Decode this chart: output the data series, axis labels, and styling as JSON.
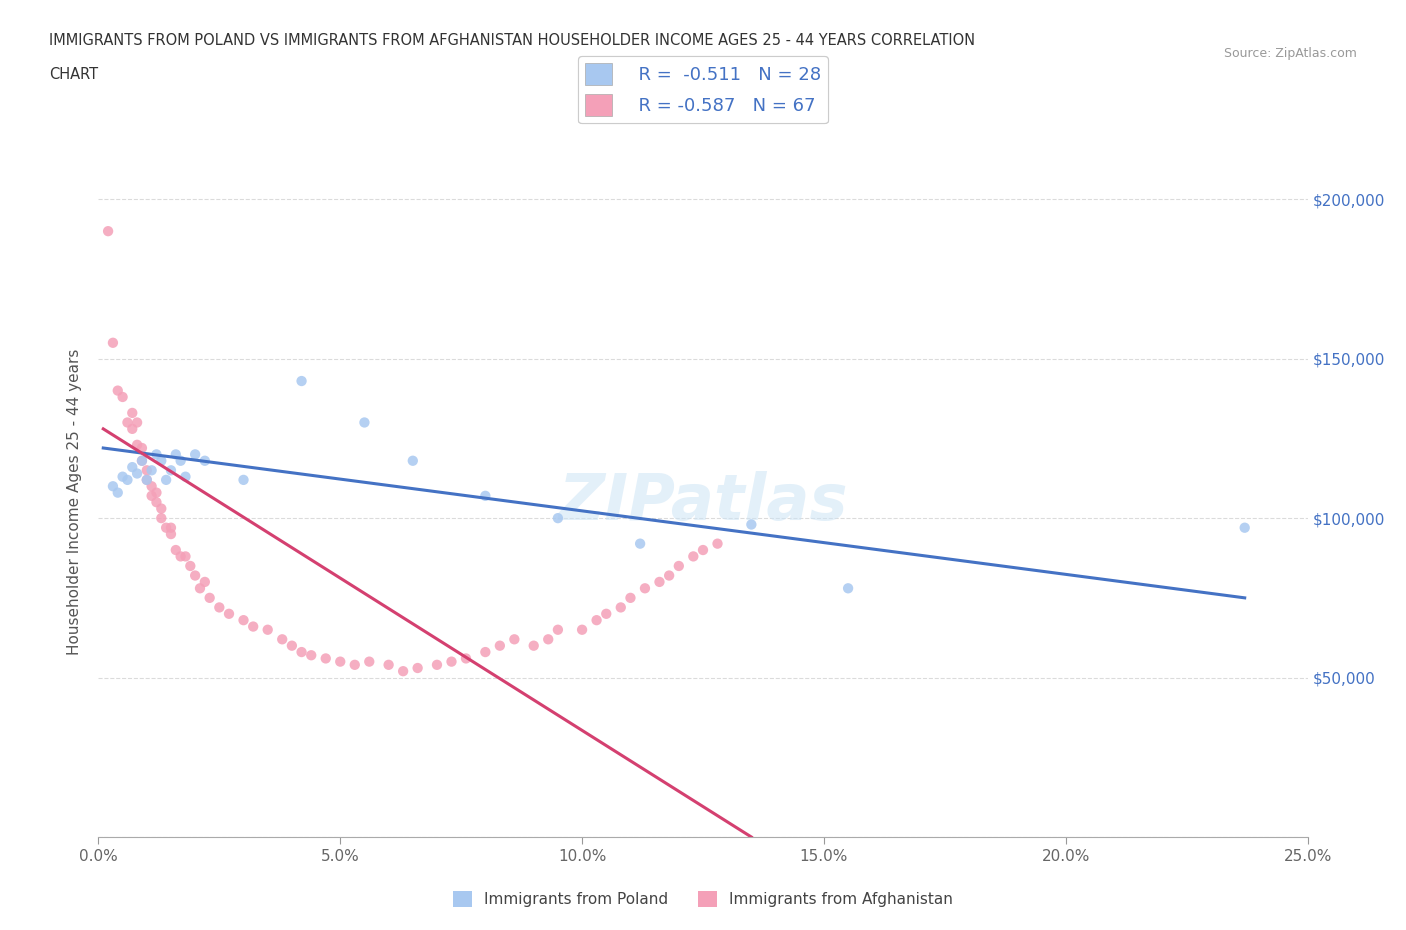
{
  "title_line1": "IMMIGRANTS FROM POLAND VS IMMIGRANTS FROM AFGHANISTAN HOUSEHOLDER INCOME AGES 25 - 44 YEARS CORRELATION",
  "title_line2": "CHART",
  "source": "Source: ZipAtlas.com",
  "ylabel": "Householder Income Ages 25 - 44 years",
  "xlim": [
    0.0,
    0.25
  ],
  "ylim": [
    0,
    210000
  ],
  "xticks": [
    0.0,
    0.05,
    0.1,
    0.15,
    0.2,
    0.25
  ],
  "xtick_labels": [
    "0.0%",
    "5.0%",
    "10.0%",
    "15.0%",
    "20.0%",
    "25.0%"
  ],
  "yticks": [
    0,
    50000,
    100000,
    150000,
    200000
  ],
  "ytick_labels_right": [
    "",
    "$50,000",
    "$100,000",
    "$150,000",
    "$200,000"
  ],
  "poland_color": "#a8c8f0",
  "poland_line_color": "#4472c4",
  "afghanistan_color": "#f4a0b8",
  "afghanistan_line_color": "#d44070",
  "r_poland": -0.511,
  "n_poland": 28,
  "r_afghanistan": -0.587,
  "n_afghanistan": 67,
  "poland_x": [
    0.003,
    0.004,
    0.005,
    0.006,
    0.007,
    0.008,
    0.009,
    0.01,
    0.011,
    0.012,
    0.013,
    0.014,
    0.015,
    0.016,
    0.017,
    0.018,
    0.02,
    0.022,
    0.03,
    0.042,
    0.055,
    0.065,
    0.08,
    0.095,
    0.112,
    0.135,
    0.155,
    0.237
  ],
  "poland_y": [
    110000,
    108000,
    113000,
    112000,
    116000,
    114000,
    118000,
    112000,
    115000,
    120000,
    118000,
    112000,
    115000,
    120000,
    118000,
    113000,
    120000,
    118000,
    112000,
    143000,
    130000,
    118000,
    107000,
    100000,
    92000,
    98000,
    78000,
    97000
  ],
  "afghanistan_x": [
    0.002,
    0.003,
    0.004,
    0.005,
    0.006,
    0.007,
    0.007,
    0.008,
    0.008,
    0.009,
    0.009,
    0.01,
    0.01,
    0.011,
    0.011,
    0.012,
    0.012,
    0.013,
    0.013,
    0.014,
    0.015,
    0.015,
    0.016,
    0.017,
    0.018,
    0.019,
    0.02,
    0.021,
    0.022,
    0.023,
    0.025,
    0.027,
    0.03,
    0.032,
    0.035,
    0.038,
    0.04,
    0.042,
    0.044,
    0.047,
    0.05,
    0.053,
    0.056,
    0.06,
    0.063,
    0.066,
    0.07,
    0.073,
    0.076,
    0.08,
    0.083,
    0.086,
    0.09,
    0.093,
    0.095,
    0.1,
    0.103,
    0.105,
    0.108,
    0.11,
    0.113,
    0.116,
    0.118,
    0.12,
    0.123,
    0.125,
    0.128
  ],
  "afghanistan_y": [
    190000,
    155000,
    140000,
    138000,
    130000,
    128000,
    133000,
    130000,
    123000,
    118000,
    122000,
    112000,
    115000,
    110000,
    107000,
    105000,
    108000,
    103000,
    100000,
    97000,
    95000,
    97000,
    90000,
    88000,
    88000,
    85000,
    82000,
    78000,
    80000,
    75000,
    72000,
    70000,
    68000,
    66000,
    65000,
    62000,
    60000,
    58000,
    57000,
    56000,
    55000,
    54000,
    55000,
    54000,
    52000,
    53000,
    54000,
    55000,
    56000,
    58000,
    60000,
    62000,
    60000,
    62000,
    65000,
    65000,
    68000,
    70000,
    72000,
    75000,
    78000,
    80000,
    82000,
    85000,
    88000,
    90000,
    92000
  ],
  "watermark": "ZIPatlas",
  "background_color": "#ffffff",
  "grid_color": "#cccccc",
  "grid_linestyle": "--"
}
